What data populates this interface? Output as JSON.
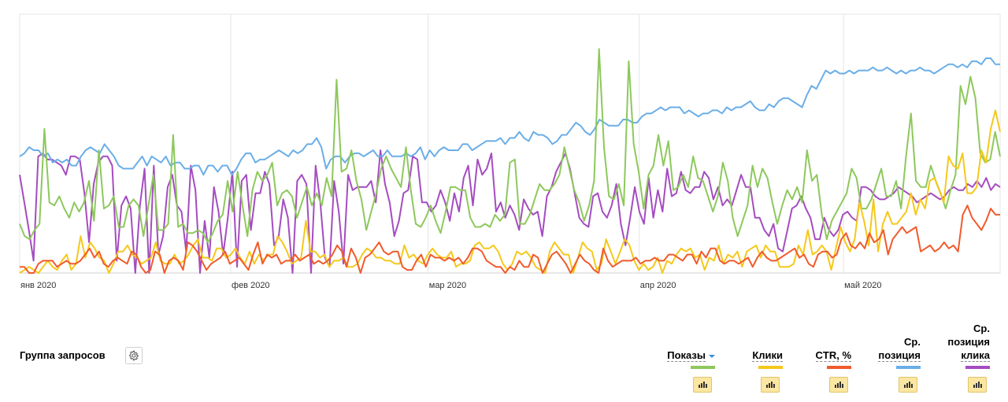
{
  "chart_data": {
    "type": "line",
    "x_start": "2020-01-01",
    "x_end": "2020-05-24",
    "month_ticks": [
      {
        "label": "янв 2020",
        "date": "2020-01-01"
      },
      {
        "label": "фев 2020",
        "date": "2020-02-01"
      },
      {
        "label": "мар 2020",
        "date": "2020-03-01"
      },
      {
        "label": "апр 2020",
        "date": "2020-04-01"
      },
      {
        "label": "май 2020",
        "date": "2020-05-01"
      }
    ],
    "y_axis_labels": "none",
    "grid": "vertical month lines",
    "series": [
      {
        "name": "Показы",
        "color": "#8dc85c",
        "values": [
          0.16,
          0.12,
          0.11,
          0.14,
          0.16,
          0.47,
          0.23,
          0.22,
          0.25,
          0.21,
          0.18,
          0.23,
          0.2,
          0.23,
          0.3,
          0.17,
          0.4,
          0.21,
          0.22,
          0.25,
          0.15,
          0.15,
          0.22,
          0.24,
          0.22,
          0.12,
          0.22,
          0.32,
          0.14,
          0.14,
          0.16,
          0.45,
          0.15,
          0.16,
          0.13,
          0.13,
          0.14,
          0.13,
          0.1,
          0.13,
          0.17,
          0.19,
          0.3,
          0.2,
          0.33,
          0.22,
          0.12,
          0.27,
          0.33,
          0.3,
          0.32,
          0.36,
          0.22,
          0.26,
          0.27,
          0.25,
          0.18,
          0.23,
          0.28,
          0.22,
          0.26,
          0.22,
          0.31,
          0.25,
          0.63,
          0.33,
          0.34,
          0.4,
          0.3,
          0.24,
          0.14,
          0.2,
          0.26,
          0.34,
          0.38,
          0.34,
          0.31,
          0.28,
          0.41,
          0.27,
          0.16,
          0.15,
          0.18,
          0.22,
          0.17,
          0.13,
          0.2,
          0.28,
          0.28,
          0.27,
          0.27,
          0.18,
          0.15,
          0.15,
          0.16,
          0.15,
          0.19,
          0.17,
          0.19,
          0.36,
          0.37,
          0.16,
          0.16,
          0.19,
          0.24,
          0.29,
          0.27,
          0.27,
          0.29,
          0.32,
          0.41,
          0.34,
          0.27,
          0.23,
          0.17,
          0.22,
          0.3,
          0.73,
          0.41,
          0.25,
          0.24,
          0.29,
          0.22,
          0.69,
          0.42,
          0.33,
          0.21,
          0.32,
          0.35,
          0.45,
          0.35,
          0.43,
          0.27,
          0.28,
          0.32,
          0.28,
          0.38,
          0.31,
          0.3,
          0.25,
          0.2,
          0.25,
          0.36,
          0.3,
          0.18,
          0.12,
          0.17,
          0.22,
          0.35,
          0.28,
          0.34,
          0.31,
          0.23,
          0.16,
          0.22,
          0.27,
          0.24,
          0.28,
          0.23,
          0.4,
          0.3,
          0.32,
          0.19,
          0.11,
          0.17,
          0.2,
          0.23,
          0.26,
          0.34,
          0.31,
          0.21,
          0.21,
          0.24,
          0.29,
          0.34,
          0.25,
          0.25,
          0.3,
          0.21,
          0.38,
          0.52,
          0.3,
          0.28,
          0.28,
          0.35,
          0.3,
          0.26,
          0.21,
          0.27,
          0.32,
          0.61,
          0.55,
          0.64,
          0.57,
          0.39,
          0.36,
          0.37,
          0.46,
          0.38
        ]
      },
      {
        "name": "Клики",
        "color": "#f5c81a",
        "values": [
          0.0,
          0.01,
          0.02,
          0.01,
          0.0,
          0.02,
          0.04,
          0.02,
          0.01,
          0.04,
          0.06,
          0.01,
          0.03,
          0.12,
          0.05,
          0.1,
          0.08,
          0.05,
          0.04,
          0.0,
          0.03,
          0.07,
          0.07,
          0.09,
          0.06,
          0.05,
          0.03,
          0.04,
          0.05,
          0.1,
          0.04,
          0.03,
          0.03,
          0.06,
          0.03,
          0.04,
          0.06,
          0.09,
          0.11,
          0.05,
          0.05,
          0.04,
          0.08,
          0.08,
          0.05,
          0.06,
          0.08,
          0.05,
          0.03,
          0.07,
          0.03,
          0.06,
          0.04,
          0.06,
          0.06,
          0.12,
          0.1,
          0.07,
          0.03,
          0.04,
          0.05,
          0.17,
          0.07,
          0.07,
          0.05,
          0.06,
          0.02,
          0.04,
          0.04,
          0.05,
          0.02,
          0.02,
          0.03,
          0.06,
          0.08,
          0.07,
          0.05,
          0.05,
          0.04,
          0.04,
          0.03,
          0.03,
          0.09,
          0.05,
          0.06,
          0.04,
          0.03,
          0.06,
          0.08,
          0.06,
          0.05,
          0.05,
          0.07,
          0.02,
          0.03,
          0.03,
          0.04,
          0.09,
          0.1,
          0.08,
          0.08,
          0.09,
          0.07,
          0.03,
          0.01,
          0.03,
          0.07,
          0.06,
          0.07,
          0.05,
          0.02,
          0.01,
          0.0,
          0.07,
          0.1,
          0.08,
          0.06,
          0.06,
          0.0,
          0.05,
          0.1,
          0.08,
          0.07,
          0.01,
          0.03,
          0.11,
          0.07,
          0.03,
          0.07,
          0.11,
          0.09,
          0.04,
          0.01,
          0.03,
          0.01,
          0.02,
          0.05,
          0.0,
          0.04,
          0.03,
          0.06,
          0.08,
          0.07,
          0.08,
          0.05,
          0.06,
          0.01,
          0.05,
          0.04,
          0.09,
          0.03,
          0.06,
          0.05,
          0.07,
          0.02,
          0.07,
          0.08,
          0.09,
          0.05,
          0.09,
          0.07,
          0.07,
          0.02,
          0.02,
          0.02,
          0.03,
          0.09,
          0.06,
          0.14,
          0.06,
          0.07,
          0.09,
          0.07,
          0.01,
          0.08,
          0.15,
          0.1,
          0.07,
          0.11,
          0.23,
          0.17,
          0.09,
          0.24,
          0.07,
          0.16,
          0.2,
          0.16,
          0.16,
          0.18,
          0.2,
          0.26,
          0.19,
          0.24,
          0.21,
          0.3,
          0.31,
          0.27,
          0.23,
          0.38,
          0.35,
          0.34,
          0.39,
          0.26,
          0.26,
          0.28,
          0.4,
          0.36,
          0.47,
          0.53,
          0.46
        ]
      },
      {
        "name": "CTR, %",
        "color": "#f05a2c",
        "values": [
          0.02,
          0.02,
          0.0,
          0.0,
          0.03,
          0.04,
          0.04,
          0.04,
          0.02,
          0.03,
          0.04,
          0.03,
          0.03,
          0.04,
          0.06,
          0.08,
          0.05,
          0.07,
          0.03,
          0.02,
          0.04,
          0.05,
          0.04,
          0.03,
          0.07,
          0.06,
          0.02,
          0.0,
          0.01,
          0.07,
          0.06,
          0.0,
          0.04,
          0.05,
          0.04,
          0.01,
          0.1,
          0.09,
          0.07,
          0.04,
          0.01,
          0.03,
          0.04,
          0.05,
          0.07,
          0.03,
          0.04,
          0.05,
          0.03,
          0.01,
          0.06,
          0.1,
          0.03,
          0.06,
          0.05,
          0.06,
          0.03,
          0.04,
          0.04,
          0.06,
          0.04,
          0.05,
          0.06,
          0.03,
          0.04,
          0.03,
          0.04,
          0.06,
          0.09,
          0.07,
          0.02,
          0.08,
          0.05,
          0.0,
          0.05,
          0.06,
          0.08,
          0.1,
          0.07,
          0.06,
          0.07,
          0.07,
          0.02,
          0.01,
          0.01,
          0.04,
          0.06,
          0.02,
          0.06,
          0.05,
          0.05,
          0.04,
          0.05,
          0.04,
          0.05,
          0.03,
          0.05,
          0.08,
          0.08,
          0.07,
          0.04,
          0.03,
          0.02,
          0.02,
          0.0,
          0.02,
          0.01,
          0.04,
          0.02,
          0.02,
          0.06,
          0.05,
          0.0,
          0.03,
          0.06,
          0.07,
          0.05,
          0.03,
          0.0,
          0.03,
          0.06,
          0.04,
          0.03,
          0.01,
          0.0,
          0.08,
          0.04,
          0.02,
          0.03,
          0.04,
          0.04,
          0.04,
          0.05,
          0.03,
          0.04,
          0.04,
          0.05,
          0.04,
          0.04,
          0.06,
          0.06,
          0.05,
          0.04,
          0.06,
          0.06,
          0.03,
          0.07,
          0.05,
          0.08,
          0.08,
          0.04,
          0.03,
          0.04,
          0.04,
          0.03,
          0.04,
          0.05,
          0.02,
          0.05,
          0.07,
          0.05,
          0.04,
          0.04,
          0.05,
          0.06,
          0.07,
          0.08,
          0.05,
          0.06,
          0.03,
          0.02,
          0.06,
          0.07,
          0.07,
          0.05,
          0.06,
          0.11,
          0.13,
          0.09,
          0.08,
          0.1,
          0.08,
          0.13,
          0.1,
          0.11,
          0.14,
          0.06,
          0.11,
          0.13,
          0.15,
          0.13,
          0.14,
          0.15,
          0.07,
          0.08,
          0.09,
          0.07,
          0.08,
          0.1,
          0.08,
          0.09,
          0.07,
          0.19,
          0.22,
          0.18,
          0.16,
          0.14,
          0.17,
          0.21,
          0.19,
          0.19
        ]
      },
      {
        "name": "Ср. позиция",
        "color": "#6aaee8",
        "values": [
          0.38,
          0.39,
          0.41,
          0.4,
          0.4,
          0.38,
          0.39,
          0.36,
          0.37,
          0.36,
          0.37,
          0.35,
          0.35,
          0.38,
          0.4,
          0.41,
          0.4,
          0.39,
          0.42,
          0.4,
          0.38,
          0.35,
          0.34,
          0.34,
          0.34,
          0.36,
          0.38,
          0.35,
          0.38,
          0.37,
          0.36,
          0.38,
          0.35,
          0.36,
          0.36,
          0.34,
          0.34,
          0.35,
          0.35,
          0.32,
          0.35,
          0.35,
          0.33,
          0.35,
          0.35,
          0.32,
          0.34,
          0.37,
          0.39,
          0.39,
          0.36,
          0.37,
          0.37,
          0.38,
          0.39,
          0.4,
          0.39,
          0.38,
          0.4,
          0.39,
          0.4,
          0.42,
          0.42,
          0.44,
          0.41,
          0.34,
          0.37,
          0.38,
          0.38,
          0.36,
          0.38,
          0.39,
          0.39,
          0.38,
          0.39,
          0.4,
          0.38,
          0.38,
          0.4,
          0.38,
          0.38,
          0.38,
          0.39,
          0.38,
          0.39,
          0.41,
          0.37,
          0.4,
          0.38,
          0.4,
          0.41,
          0.4,
          0.4,
          0.4,
          0.42,
          0.42,
          0.4,
          0.41,
          0.42,
          0.43,
          0.43,
          0.43,
          0.44,
          0.42,
          0.44,
          0.44,
          0.46,
          0.44,
          0.43,
          0.46,
          0.45,
          0.45,
          0.44,
          0.42,
          0.43,
          0.45,
          0.45,
          0.47,
          0.49,
          0.48,
          0.46,
          0.45,
          0.47,
          0.5,
          0.49,
          0.48,
          0.48,
          0.48,
          0.5,
          0.5,
          0.49,
          0.49,
          0.51,
          0.52,
          0.52,
          0.53,
          0.54,
          0.53,
          0.54,
          0.54,
          0.54,
          0.52,
          0.53,
          0.52,
          0.51,
          0.52,
          0.52,
          0.53,
          0.53,
          0.52,
          0.54,
          0.53,
          0.54,
          0.54,
          0.55,
          0.56,
          0.54,
          0.53,
          0.53,
          0.55,
          0.54,
          0.56,
          0.57,
          0.57,
          0.56,
          0.55,
          0.54,
          0.58,
          0.61,
          0.6,
          0.63,
          0.66,
          0.65,
          0.66,
          0.65,
          0.65,
          0.66,
          0.65,
          0.66,
          0.66,
          0.66,
          0.67,
          0.66,
          0.66,
          0.67,
          0.66,
          0.65,
          0.66,
          0.65,
          0.66,
          0.66,
          0.67,
          0.66,
          0.66,
          0.65,
          0.66,
          0.67,
          0.68,
          0.68,
          0.67,
          0.68,
          0.67,
          0.69,
          0.69,
          0.68,
          0.7,
          0.7,
          0.68,
          0.68
        ]
      },
      {
        "name": "Ср. позиция клика",
        "color": "#a44cc0",
        "values": [
          0.32,
          0.23,
          0.14,
          0.04,
          0.38,
          0.39,
          0.37,
          0.37,
          0.36,
          0.35,
          0.32,
          0.38,
          0.38,
          0.37,
          0.26,
          0.1,
          0.29,
          0.36,
          0.38,
          0.38,
          0.35,
          0.04,
          0.22,
          0.25,
          0.21,
          0.0,
          0.22,
          0.34,
          0.0,
          0.35,
          0.06,
          0.12,
          0.28,
          0.32,
          0.22,
          0.2,
          0.07,
          0.35,
          0.27,
          0.0,
          0.17,
          0.05,
          0.28,
          0.2,
          0.06,
          0.18,
          0.33,
          0.02,
          0.3,
          0.32,
          0.14,
          0.26,
          0.26,
          0.33,
          0.29,
          0.09,
          0.12,
          0.24,
          0.18,
          0.0,
          0.3,
          0.32,
          0.29,
          0.0,
          0.35,
          0.23,
          0.05,
          0.02,
          0.3,
          0.2,
          0.03,
          0.32,
          0.27,
          0.28,
          0.28,
          0.28,
          0.3,
          0.23,
          0.4,
          0.29,
          0.23,
          0.12,
          0.17,
          0.26,
          0.27,
          0.38,
          0.37,
          0.23,
          0.23,
          0.2,
          0.22,
          0.27,
          0.23,
          0.17,
          0.26,
          0.2,
          0.31,
          0.35,
          0.22,
          0.37,
          0.32,
          0.34,
          0.39,
          0.2,
          0.23,
          0.18,
          0.22,
          0.19,
          0.14,
          0.24,
          0.21,
          0.19,
          0.2,
          0.12,
          0.25,
          0.28,
          0.33,
          0.36,
          0.39,
          0.34,
          0.26,
          0.18,
          0.16,
          0.15,
          0.25,
          0.26,
          0.2,
          0.18,
          0.22,
          0.29,
          0.16,
          0.09,
          0.18,
          0.28,
          0.2,
          0.16,
          0.31,
          0.18,
          0.27,
          0.2,
          0.34,
          0.25,
          0.26,
          0.33,
          0.27,
          0.26,
          0.28,
          0.28,
          0.33,
          0.31,
          0.24,
          0.28,
          0.22,
          0.24,
          0.22,
          0.27,
          0.32,
          0.28,
          0.28,
          0.18,
          0.18,
          0.14,
          0.12,
          0.16,
          0.08,
          0.07,
          0.14,
          0.21,
          0.22,
          0.25,
          0.21,
          0.18,
          0.11,
          0.11,
          0.18,
          0.14,
          0.12,
          0.14,
          0.19,
          0.2,
          0.18,
          0.17,
          0.28,
          0.28,
          0.27,
          0.25,
          0.24,
          0.24,
          0.25,
          0.26,
          0.28,
          0.27,
          0.26,
          0.25,
          0.23,
          0.24,
          0.25,
          0.26,
          0.25,
          0.24,
          0.25,
          0.27,
          0.28,
          0.27,
          0.27,
          0.29,
          0.28,
          0.3,
          0.28,
          0.31,
          0.27,
          0.29,
          0.28
        ]
      }
    ]
  },
  "toolbar": {
    "group_label": "Группа запросов",
    "settings_icon": "gear-icon"
  },
  "metrics": [
    {
      "lines": [
        "Показы"
      ],
      "color": "#8dc85c",
      "sorted": true,
      "icon": "bar-chart-icon"
    },
    {
      "lines": [
        "Клики"
      ],
      "color": "#f5c81a",
      "sorted": false,
      "icon": "bar-chart-icon"
    },
    {
      "lines": [
        "CTR, %"
      ],
      "color": "#f05a2c",
      "sorted": false,
      "icon": "bar-chart-icon"
    },
    {
      "lines": [
        "Ср.",
        "позиция"
      ],
      "color": "#6aaee8",
      "sorted": false,
      "icon": "bar-chart-icon"
    },
    {
      "lines": [
        "Ср.",
        "позиция",
        "клика"
      ],
      "color": "#a44cc0",
      "sorted": false,
      "icon": "bar-chart-icon"
    }
  ]
}
